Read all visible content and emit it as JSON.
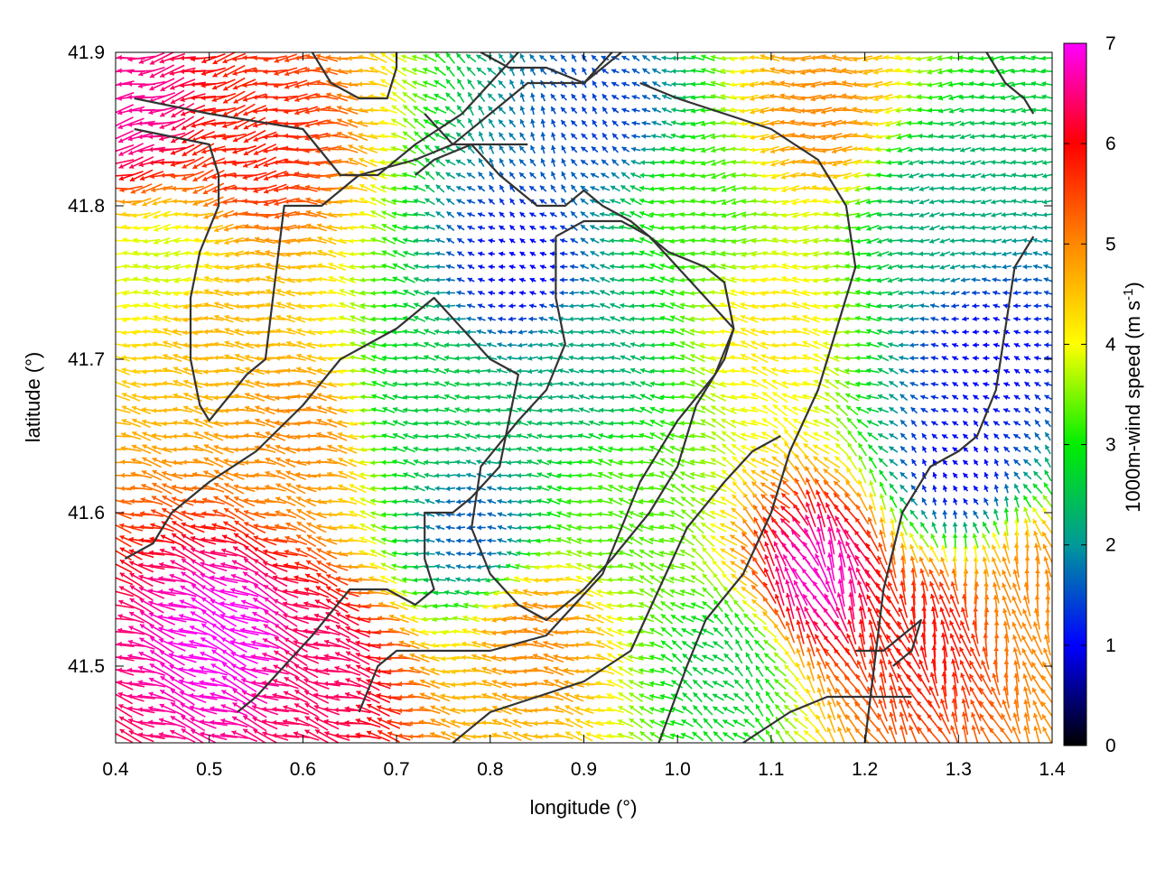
{
  "chart_data": {
    "type": "vector-field",
    "title": "",
    "xlabel": "longitude (°)",
    "ylabel": "latitude (°)",
    "xlim": [
      0.4,
      1.4
    ],
    "ylim": [
      41.45,
      41.9
    ],
    "xticks": [
      "0.4",
      "0.5",
      "0.6",
      "0.7",
      "0.8",
      "0.9",
      "1.0",
      "1.1",
      "1.2",
      "1.3",
      "1.4"
    ],
    "yticks": [
      "41.5",
      "41.6",
      "41.7",
      "41.8",
      "41.9"
    ],
    "colorbar": {
      "label": "1000m-wind speed (m s",
      "label_sup": "-1",
      "label_close": ")",
      "range": [
        0,
        7
      ],
      "ticks": [
        "0",
        "1",
        "2",
        "3",
        "4",
        "5",
        "6",
        "7"
      ],
      "colormap": [
        "#000000",
        "#0000ff",
        "#009999",
        "#00ee00",
        "#ffff00",
        "#ff8800",
        "#ff0000",
        "#ff00ff"
      ]
    },
    "contour_color": "#333333",
    "grid": false,
    "legend": "none",
    "speed_regions": [
      {
        "name": "northwest high winds",
        "lon": 0.42,
        "lat": 41.86,
        "speed": 6.6
      },
      {
        "name": "northwest red band",
        "lon": 0.55,
        "lat": 41.84,
        "speed": 5.8
      },
      {
        "name": "northwest coastal band",
        "lon": 0.45,
        "lat": 41.76,
        "speed": 3.8
      },
      {
        "name": "central west orange band",
        "lon": 0.6,
        "lat": 41.65,
        "speed": 5.0
      },
      {
        "name": "west mid orange",
        "lon": 0.5,
        "lat": 41.72,
        "speed": 4.6
      },
      {
        "name": "southwest magenta core",
        "lon": 0.52,
        "lat": 41.52,
        "speed": 7.0
      },
      {
        "name": "southwest magenta edge",
        "lon": 0.62,
        "lat": 41.5,
        "speed": 6.4
      },
      {
        "name": "north central calm basin",
        "lon": 0.83,
        "lat": 41.76,
        "speed": 1.0
      },
      {
        "name": "north central teal",
        "lon": 0.92,
        "lat": 41.86,
        "speed": 1.4
      },
      {
        "name": "central green plateau",
        "lon": 0.9,
        "lat": 41.7,
        "speed": 2.2
      },
      {
        "name": "central west green",
        "lon": 0.73,
        "lat": 41.67,
        "speed": 2.6
      },
      {
        "name": "small central calm",
        "lon": 0.78,
        "lat": 41.59,
        "speed": 1.6
      },
      {
        "name": "north yellow ridge",
        "lon": 1.02,
        "lat": 41.8,
        "speed": 3.2
      },
      {
        "name": "north east orange",
        "lon": 1.15,
        "lat": 41.86,
        "speed": 5.0
      },
      {
        "name": "east green",
        "lon": 1.28,
        "lat": 41.8,
        "speed": 2.2
      },
      {
        "name": "east calm pocket",
        "lon": 1.33,
        "lat": 41.7,
        "speed": 1.0
      },
      {
        "name": "east mid calm",
        "lon": 1.3,
        "lat": 41.63,
        "speed": 1.0
      },
      {
        "name": "south central yellow",
        "lon": 0.95,
        "lat": 41.6,
        "speed": 3.3
      },
      {
        "name": "south central orange",
        "lon": 0.85,
        "lat": 41.52,
        "speed": 5.0
      },
      {
        "name": "south green pocket",
        "lon": 1.05,
        "lat": 41.5,
        "speed": 2.6
      },
      {
        "name": "southeast magenta",
        "lon": 1.15,
        "lat": 41.56,
        "speed": 6.8
      },
      {
        "name": "southeast red",
        "lon": 1.27,
        "lat": 41.52,
        "speed": 5.9
      },
      {
        "name": "far southeast orange",
        "lon": 1.38,
        "lat": 41.55,
        "speed": 5.0
      },
      {
        "name": "central east orange",
        "lon": 1.1,
        "lat": 41.72,
        "speed": 4.2
      }
    ],
    "flow_regions": [
      {
        "lon": 0.5,
        "lat": 41.85,
        "dir_deg": 200
      },
      {
        "lon": 0.6,
        "lat": 41.7,
        "dir_deg": 175
      },
      {
        "lon": 0.55,
        "lat": 41.55,
        "dir_deg": 155
      },
      {
        "lon": 0.85,
        "lat": 41.85,
        "dir_deg": 110
      },
      {
        "lon": 0.85,
        "lat": 41.7,
        "dir_deg": 180
      },
      {
        "lon": 0.8,
        "lat": 41.55,
        "dir_deg": 180
      },
      {
        "lon": 1.05,
        "lat": 41.82,
        "dir_deg": 190
      },
      {
        "lon": 1.25,
        "lat": 41.78,
        "dir_deg": 190
      },
      {
        "lon": 1.18,
        "lat": 41.56,
        "dir_deg": 110
      },
      {
        "lon": 1.32,
        "lat": 41.55,
        "dir_deg": 95
      },
      {
        "lon": 1.3,
        "lat": 41.85,
        "dir_deg": 185
      }
    ],
    "contours": [
      {
        "name": "western valley",
        "points": [
          [
            0.42,
            41.85
          ],
          [
            0.5,
            41.84
          ],
          [
            0.51,
            41.82
          ],
          [
            0.51,
            41.8
          ],
          [
            0.49,
            41.77
          ],
          [
            0.48,
            41.74
          ],
          [
            0.48,
            41.7
          ],
          [
            0.49,
            41.67
          ],
          [
            0.5,
            41.66
          ],
          [
            0.54,
            41.69
          ],
          [
            0.56,
            41.7
          ],
          [
            0.57,
            41.75
          ],
          [
            0.58,
            41.8
          ],
          [
            0.62,
            41.8
          ],
          [
            0.66,
            41.82
          ],
          [
            0.72,
            41.83
          ],
          [
            0.76,
            41.84
          ],
          [
            0.8,
            41.86
          ],
          [
            0.84,
            41.88
          ],
          [
            0.9,
            41.88
          ],
          [
            0.94,
            41.9
          ]
        ]
      },
      {
        "name": "western valley north rim",
        "points": [
          [
            0.42,
            41.87
          ],
          [
            0.5,
            41.86
          ],
          [
            0.6,
            41.85
          ],
          [
            0.64,
            41.82
          ],
          [
            0.68,
            41.82
          ],
          [
            0.72,
            41.84
          ],
          [
            0.77,
            41.86
          ],
          [
            0.8,
            41.88
          ],
          [
            0.83,
            41.9
          ]
        ]
      },
      {
        "name": "northwest hill",
        "points": [
          [
            0.61,
            41.9
          ],
          [
            0.63,
            41.88
          ],
          [
            0.66,
            41.87
          ],
          [
            0.69,
            41.87
          ],
          [
            0.7,
            41.89
          ],
          [
            0.7,
            41.9
          ]
        ]
      },
      {
        "name": "north small hill",
        "points": [
          [
            0.79,
            41.9
          ],
          [
            0.82,
            41.89
          ],
          [
            0.86,
            41.89
          ],
          [
            0.9,
            41.88
          ],
          [
            0.93,
            41.9
          ]
        ]
      },
      {
        "name": "central plateau",
        "points": [
          [
            0.41,
            41.57
          ],
          [
            0.44,
            41.58
          ],
          [
            0.46,
            41.6
          ],
          [
            0.5,
            41.62
          ],
          [
            0.55,
            41.64
          ],
          [
            0.6,
            41.67
          ],
          [
            0.64,
            41.7
          ],
          [
            0.7,
            41.72
          ],
          [
            0.74,
            41.74
          ],
          [
            0.77,
            41.72
          ],
          [
            0.8,
            41.7
          ],
          [
            0.83,
            41.69
          ],
          [
            0.82,
            41.66
          ],
          [
            0.81,
            41.63
          ],
          [
            0.78,
            41.61
          ],
          [
            0.76,
            41.6
          ],
          [
            0.73,
            41.6
          ],
          [
            0.73,
            41.57
          ],
          [
            0.74,
            41.55
          ],
          [
            0.72,
            41.54
          ],
          [
            0.69,
            41.55
          ],
          [
            0.65,
            41.55
          ],
          [
            0.61,
            41.52
          ],
          [
            0.58,
            41.5
          ],
          [
            0.55,
            41.48
          ],
          [
            0.53,
            41.47
          ]
        ]
      },
      {
        "name": "central basin",
        "points": [
          [
            0.66,
            41.47
          ],
          [
            0.68,
            41.5
          ],
          [
            0.7,
            41.51
          ],
          [
            0.75,
            41.51
          ],
          [
            0.8,
            41.51
          ],
          [
            0.86,
            41.52
          ],
          [
            0.89,
            41.54
          ],
          [
            0.92,
            41.56
          ],
          [
            0.94,
            41.59
          ],
          [
            0.96,
            41.62
          ],
          [
            1.0,
            41.66
          ],
          [
            1.04,
            41.69
          ],
          [
            1.06,
            41.72
          ],
          [
            1.05,
            41.75
          ],
          [
            1.03,
            41.76
          ],
          [
            0.99,
            41.77
          ],
          [
            0.95,
            41.79
          ],
          [
            0.92,
            41.8
          ],
          [
            0.9,
            41.81
          ],
          [
            0.88,
            41.8
          ],
          [
            0.85,
            41.8
          ],
          [
            0.81,
            41.82
          ],
          [
            0.78,
            41.84
          ],
          [
            0.74,
            41.83
          ],
          [
            0.72,
            41.82
          ]
        ]
      },
      {
        "name": "inner central loop",
        "points": [
          [
            0.87,
            41.78
          ],
          [
            0.9,
            41.79
          ],
          [
            0.94,
            41.79
          ],
          [
            0.97,
            41.78
          ],
          [
            1.0,
            41.76
          ],
          [
            1.03,
            41.74
          ],
          [
            1.06,
            41.72
          ],
          [
            1.05,
            41.7
          ],
          [
            1.02,
            41.67
          ],
          [
            1.0,
            41.63
          ],
          [
            0.97,
            41.6
          ],
          [
            0.93,
            41.57
          ],
          [
            0.9,
            41.55
          ],
          [
            0.86,
            41.53
          ],
          [
            0.83,
            41.54
          ],
          [
            0.8,
            41.56
          ],
          [
            0.78,
            41.59
          ],
          [
            0.79,
            41.63
          ],
          [
            0.83,
            41.66
          ],
          [
            0.86,
            41.68
          ],
          [
            0.88,
            41.71
          ],
          [
            0.87,
            41.74
          ],
          [
            0.87,
            41.78
          ]
        ]
      },
      {
        "name": "eastern ridge",
        "points": [
          [
            0.98,
            41.45
          ],
          [
            1.01,
            41.5
          ],
          [
            1.03,
            41.53
          ],
          [
            1.07,
            41.56
          ],
          [
            1.1,
            41.6
          ],
          [
            1.12,
            41.64
          ],
          [
            1.15,
            41.68
          ],
          [
            1.17,
            41.72
          ],
          [
            1.19,
            41.76
          ],
          [
            1.18,
            41.8
          ],
          [
            1.15,
            41.83
          ],
          [
            1.1,
            41.85
          ],
          [
            1.05,
            41.86
          ],
          [
            1.0,
            41.87
          ],
          [
            0.96,
            41.88
          ]
        ]
      },
      {
        "name": "southern basin",
        "points": [
          [
            0.76,
            41.45
          ],
          [
            0.8,
            41.47
          ],
          [
            0.85,
            41.48
          ],
          [
            0.9,
            41.49
          ],
          [
            0.95,
            41.51
          ],
          [
            0.98,
            41.55
          ],
          [
            1.01,
            41.59
          ],
          [
            1.05,
            41.62
          ],
          [
            1.08,
            41.64
          ],
          [
            1.11,
            41.65
          ]
        ]
      },
      {
        "name": "east valley",
        "points": [
          [
            1.33,
            41.9
          ],
          [
            1.35,
            41.88
          ],
          [
            1.37,
            41.87
          ],
          [
            1.38,
            41.86
          ]
        ]
      },
      {
        "name": "east inner loop",
        "points": [
          [
            1.2,
            41.45
          ],
          [
            1.21,
            41.5
          ],
          [
            1.22,
            41.55
          ],
          [
            1.24,
            41.6
          ],
          [
            1.27,
            41.63
          ],
          [
            1.3,
            41.64
          ],
          [
            1.32,
            41.65
          ],
          [
            1.34,
            41.68
          ],
          [
            1.35,
            41.72
          ],
          [
            1.36,
            41.76
          ],
          [
            1.38,
            41.78
          ]
        ]
      },
      {
        "name": "east small hill",
        "points": [
          [
            1.19,
            41.51
          ],
          [
            1.22,
            41.51
          ],
          [
            1.24,
            41.52
          ],
          [
            1.26,
            41.53
          ],
          [
            1.25,
            41.51
          ],
          [
            1.23,
            41.5
          ]
        ]
      },
      {
        "name": "southeast hill",
        "points": [
          [
            1.07,
            41.45
          ],
          [
            1.12,
            41.47
          ],
          [
            1.16,
            41.48
          ],
          [
            1.2,
            41.48
          ],
          [
            1.25,
            41.48
          ]
        ]
      },
      {
        "name": "north central inlet",
        "points": [
          [
            0.73,
            41.86
          ],
          [
            0.76,
            41.84
          ],
          [
            0.8,
            41.84
          ],
          [
            0.84,
            41.84
          ]
        ]
      }
    ]
  }
}
